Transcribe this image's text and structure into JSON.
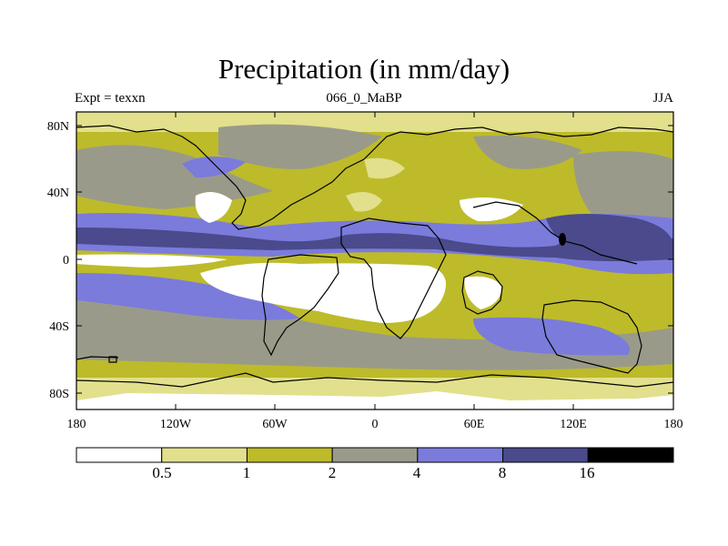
{
  "title": "Precipitation (in mm/day)",
  "subtitle": {
    "left": "Expt = texxn",
    "center": "066_0_MaBP",
    "right": "JJA"
  },
  "axes": {
    "y_labels": [
      "80N",
      "40N",
      "0",
      "40S",
      "80S"
    ],
    "x_labels": [
      "180",
      "120W",
      "60W",
      "0",
      "60E",
      "120E",
      "180"
    ]
  },
  "colorbar": {
    "boundaries": [
      "0.5",
      "1",
      "2",
      "4",
      "8",
      "16"
    ],
    "colors": [
      "#ffffff",
      "#e2e08c",
      "#bdbb2a",
      "#9a9a8a",
      "#7b7bdc",
      "#4a4a8c",
      "#000000"
    ]
  },
  "chart_data": {
    "type": "filled-contour-map",
    "title": "Precipitation (in mm/day)",
    "units": "mm/day",
    "experiment": "texxn",
    "time_period": "066_0_MaBP",
    "season": "JJA",
    "lon_range": [
      -180,
      180
    ],
    "lat_range": [
      -90,
      90
    ],
    "levels": [
      0.5,
      1,
      2,
      4,
      8,
      16
    ]
  }
}
